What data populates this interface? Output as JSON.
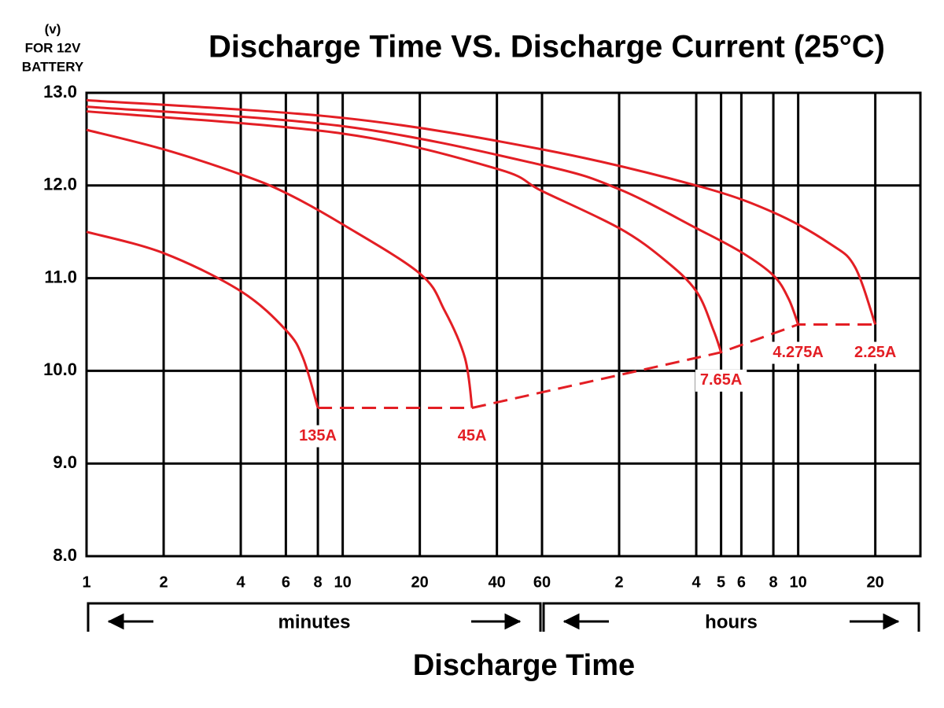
{
  "chart_data": {
    "type": "line",
    "title": "Discharge Time VS. Discharge Current (25°C)",
    "y_label_lines": [
      "(v)",
      "FOR 12V",
      "BATTERY"
    ],
    "x_label": "Discharge Time",
    "log_x": true,
    "grid": true,
    "xlim": [
      1,
      1800
    ],
    "ylim": [
      8,
      13
    ],
    "xticks": [
      1,
      2,
      4,
      6,
      8,
      10,
      20,
      40,
      60,
      {
        "value": 120,
        "label": "2"
      },
      {
        "value": 240,
        "label": "4"
      },
      {
        "value": 300,
        "label": "5"
      },
      {
        "value": 360,
        "label": "6"
      },
      {
        "value": 480,
        "label": "8"
      },
      {
        "value": 600,
        "label": "10"
      },
      {
        "value": 1200,
        "label": "20"
      }
    ],
    "yticks": [
      {
        "value": 8,
        "label": "8.0"
      },
      {
        "value": 9,
        "label": "9.0"
      },
      {
        "value": 10,
        "label": "10.0"
      },
      {
        "value": 11,
        "label": "11.0"
      },
      {
        "value": 12,
        "label": "12.0"
      },
      {
        "value": 13,
        "label": "13.0"
      }
    ],
    "x_units": [
      {
        "label": "minutes",
        "range": [
          1,
          60
        ]
      },
      {
        "label": "hours",
        "range": [
          60,
          1800
        ]
      }
    ],
    "series": [
      {
        "name": "135A",
        "color": "#e31e24",
        "x": [
          1,
          2,
          4,
          6,
          7,
          8
        ],
        "values": [
          11.5,
          11.27,
          10.86,
          10.44,
          10.14,
          9.6
        ]
      },
      {
        "name": "45A",
        "color": "#e31e24",
        "x": [
          1,
          2,
          4,
          6,
          10,
          20,
          25,
          30,
          32
        ],
        "values": [
          12.6,
          12.39,
          12.12,
          11.92,
          11.58,
          11.05,
          10.65,
          10.14,
          9.6
        ]
      },
      {
        "name": "7.65A",
        "color": "#e31e24",
        "x": [
          1,
          10,
          40,
          60,
          120,
          180,
          240,
          280,
          300
        ],
        "values": [
          12.8,
          12.56,
          12.18,
          11.94,
          11.54,
          11.2,
          10.86,
          10.44,
          10.2
        ]
      },
      {
        "name": "4.275A",
        "color": "#e31e24",
        "x": [
          1,
          10,
          60,
          120,
          240,
          360,
          480,
          550,
          600
        ],
        "values": [
          12.85,
          12.64,
          12.22,
          11.96,
          11.54,
          11.28,
          11.03,
          10.78,
          10.5
        ]
      },
      {
        "name": "2.25A",
        "color": "#e31e24",
        "x": [
          1,
          10,
          60,
          240,
          480,
          800,
          1000,
          1200
        ],
        "values": [
          12.92,
          12.73,
          12.39,
          12.0,
          11.71,
          11.37,
          11.12,
          10.5
        ]
      }
    ]
  }
}
